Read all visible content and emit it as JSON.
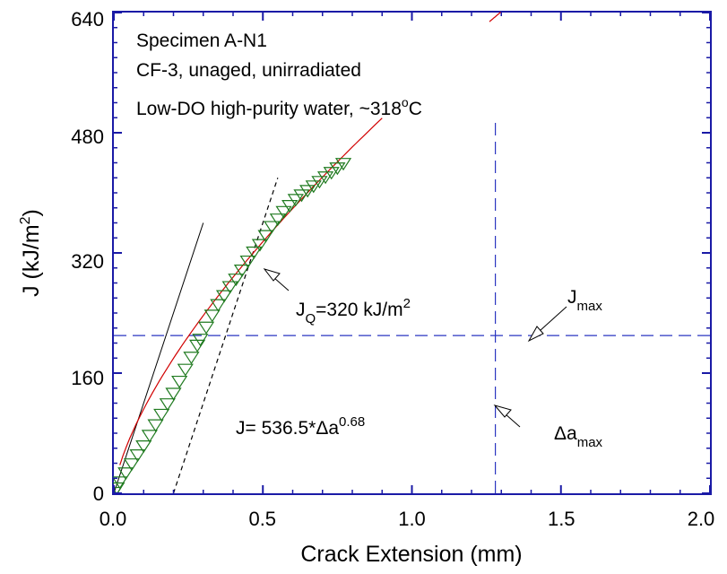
{
  "chart_data": {
    "type": "scatter",
    "xlabel": "Crack Extension (mm)",
    "ylabel_main": "J (kJ/m",
    "ylabel_sup": "2",
    "ylabel_close": ")",
    "xlim": [
      0,
      2.0
    ],
    "ylim": [
      0,
      640
    ],
    "xticks": [
      0.0,
      0.5,
      1.0,
      1.5,
      2.0
    ],
    "xtick_labels": [
      "0.0",
      "0.5",
      "1.0",
      "1.5",
      "2.0"
    ],
    "yticks": [
      0,
      160,
      320,
      480,
      640
    ],
    "ytick_labels": [
      "0",
      "160",
      "320",
      "480",
      "640"
    ],
    "grid": false,
    "colors": {
      "frame": "#1a1aa6",
      "data_marker": "#1f7a1f",
      "fit_curve": "#d10000",
      "dashed_lines": "#2a35c0",
      "construction_lines": "#000000"
    },
    "annotations": {
      "specimen": "Specimen A-N1",
      "material": "CF-3, unaged, unirradiated",
      "env_main": "Low-DO high-purity water, ~318",
      "env_sup": "o",
      "env_unit": "C",
      "jq_main": "J",
      "jq_sub": "Q",
      "jq_rest": "=320 kJ/m",
      "jq_sup": "2",
      "jmax_main": "J",
      "jmax_sub": "max",
      "fit_main": "J= 536.5*Δa",
      "fit_sup": "0.68",
      "damax_main": "Δa",
      "damax_sub": "max"
    },
    "power_law": {
      "coefficient": 536.5,
      "exponent": 0.68
    },
    "jmax": 210,
    "damax": 1.28,
    "blunting_line_slope": 1200,
    "exclusion_offset": 0.2,
    "series": [
      {
        "marker": "triangle-down",
        "x": [
          0.0,
          0.01,
          0.02,
          0.04,
          0.06,
          0.08,
          0.1,
          0.12,
          0.14,
          0.16,
          0.18,
          0.2,
          0.22,
          0.24,
          0.26,
          0.28,
          0.29,
          0.31,
          0.33,
          0.35,
          0.37,
          0.39,
          0.41,
          0.43,
          0.45,
          0.47,
          0.49,
          0.51,
          0.53,
          0.55,
          0.57,
          0.59,
          0.61,
          0.63,
          0.65,
          0.67,
          0.69,
          0.71,
          0.73,
          0.75,
          0.77
        ],
        "y": [
          2,
          8,
          16,
          28,
          40,
          52,
          64,
          78,
          92,
          106,
          120,
          134,
          150,
          166,
          182,
          198,
          206,
          222,
          238,
          252,
          264,
          276,
          286,
          298,
          310,
          322,
          332,
          344,
          356,
          366,
          376,
          384,
          392,
          398,
          404,
          410,
          416,
          422,
          428,
          434,
          440
        ]
      }
    ],
    "construction_x": {
      "solid_line": [
        0.0,
        0.3
      ],
      "dashed_line": [
        0.2,
        0.55
      ],
      "fit_segment_1": [
        0.02,
        0.9
      ],
      "fit_segment_2": [
        1.26,
        1.37
      ]
    }
  }
}
